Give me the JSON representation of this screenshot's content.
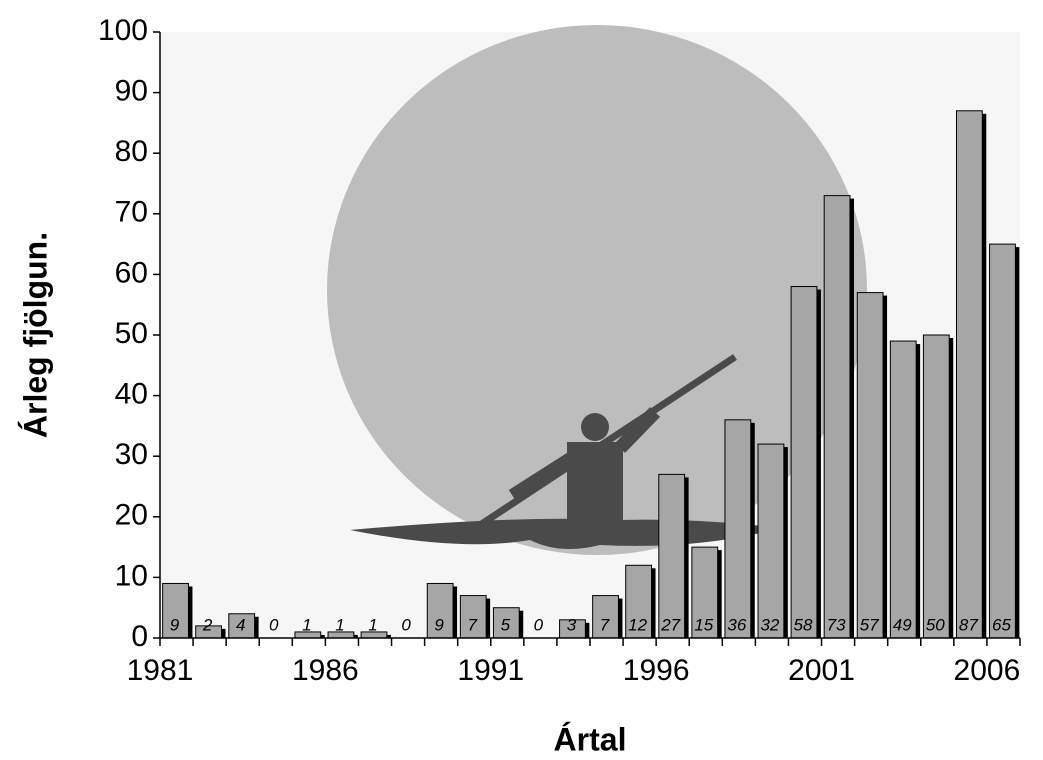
{
  "chart_data": {
    "type": "bar",
    "x_label": "Ártal",
    "y_label": "Árleg fjölgun.",
    "categories": [
      "1981",
      null,
      null,
      null,
      null,
      "1986",
      null,
      null,
      null,
      null,
      "1991",
      null,
      null,
      null,
      null,
      "1996",
      null,
      null,
      null,
      null,
      "2001",
      null,
      null,
      null,
      null,
      "2006"
    ],
    "values": [
      9,
      2,
      4,
      0,
      1,
      1,
      1,
      0,
      9,
      7,
      5,
      0,
      3,
      7,
      12,
      27,
      15,
      36,
      32,
      58,
      73,
      57,
      49,
      50,
      87,
      65
    ],
    "color": "#a6a6a6",
    "ylim": [
      0,
      100
    ],
    "yticks": [
      0,
      10,
      20,
      30,
      40,
      50,
      60,
      70,
      80,
      90,
      100
    ]
  }
}
